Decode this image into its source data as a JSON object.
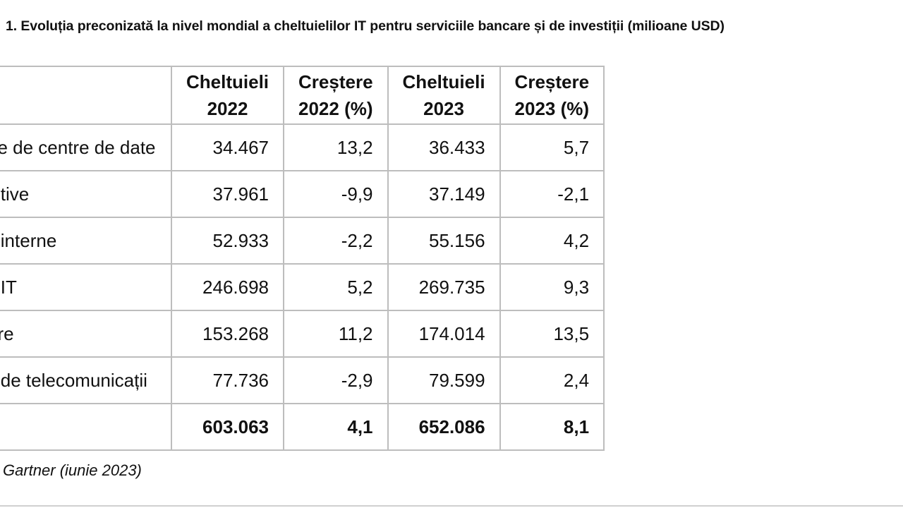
{
  "title": "1. Evoluția preconizată la nivel mondial a cheltuielilor IT pentru serviciile bancare și de investiții (milioane USD)",
  "table": {
    "headers": {
      "segment": "",
      "spend_2022_line1": "Cheltuieli",
      "spend_2022_line2": "2022",
      "growth_2022_line1": "Creștere",
      "growth_2022_line2": "2022 (%)",
      "spend_2023_line1": "Cheltuieli",
      "spend_2023_line2": "2023",
      "growth_2023_line1": "Creștere",
      "growth_2023_line2": "2023 (%)"
    },
    "rows": [
      {
        "label": "ne de centre de date",
        "spend_2022": "34.467",
        "growth_2022": "13,2",
        "spend_2023": "36.433",
        "growth_2023": "5,7"
      },
      {
        "label": "zitive",
        "spend_2022": "37.961",
        "growth_2022": "-9,9",
        "spend_2023": "37.149",
        "growth_2023": "-2,1"
      },
      {
        "label": "ii interne",
        "spend_2022": "52.933",
        "growth_2022": "-2,2",
        "spend_2023": "55.156",
        "growth_2023": "4,2"
      },
      {
        "label": "ii IT",
        "spend_2022": "246.698",
        "growth_2022": "5,2",
        "spend_2023": "269.735",
        "growth_2023": "9,3"
      },
      {
        "label": "are",
        "spend_2022": "153.268",
        "growth_2022": "11,2",
        "spend_2023": "174.014",
        "growth_2023": "13,5"
      },
      {
        "label": "ii de telecomunicații",
        "spend_2022": "77.736",
        "growth_2022": "-2,9",
        "spend_2023": "79.599",
        "growth_2023": "2,4"
      }
    ],
    "total": {
      "label": "",
      "spend_2022": "603.063",
      "growth_2022": "4,1",
      "spend_2023": "652.086",
      "growth_2023": "8,1"
    }
  },
  "source": "Gartner (iunie 2023)"
}
